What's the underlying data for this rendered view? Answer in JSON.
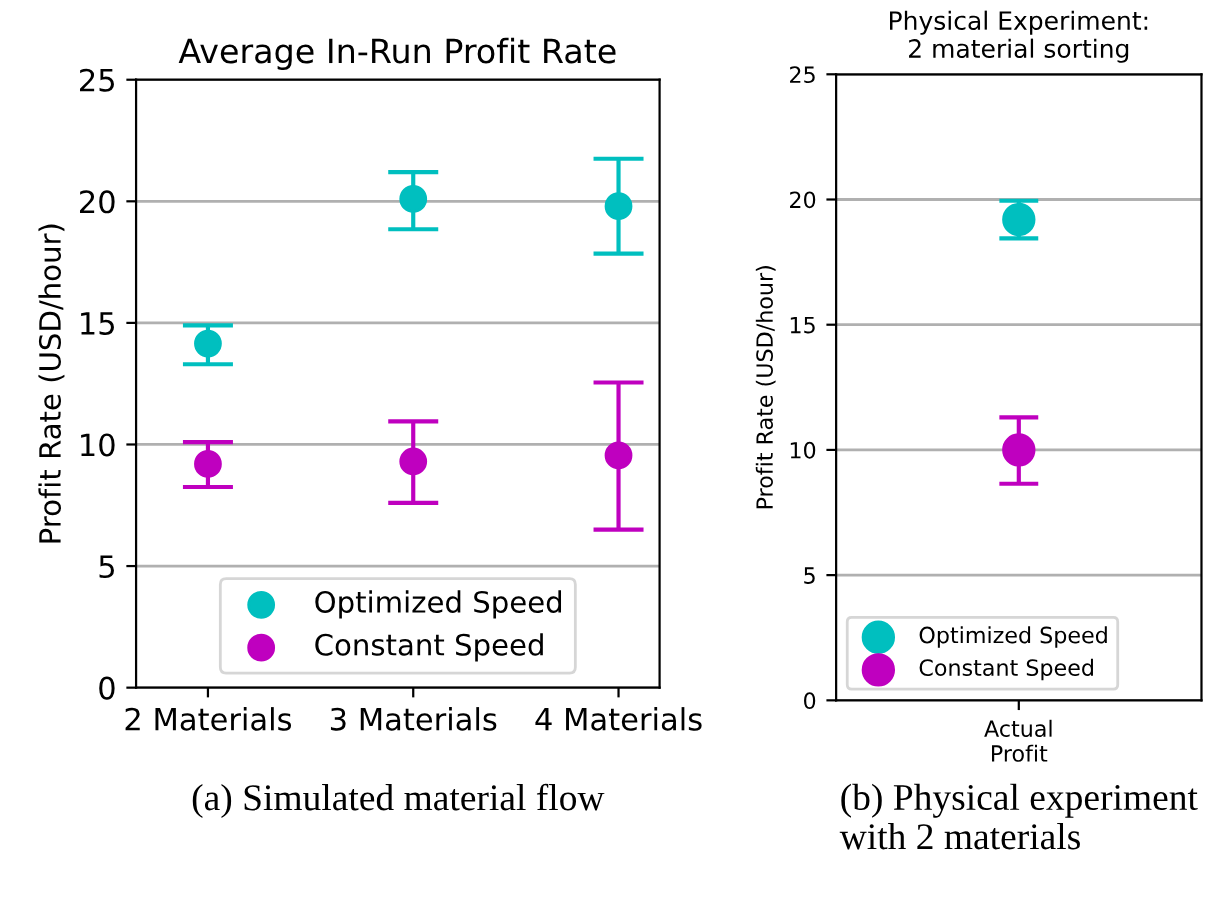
{
  "chart_data": [
    {
      "type": "scatter",
      "title": "Average In-Run Profit Rate",
      "ylabel": "Profit Rate (USD/hour)",
      "categories": [
        "2 Materials",
        "3 Materials",
        "4 Materials"
      ],
      "series": [
        {
          "name": "Optimized Speed",
          "color": "#00bfbf",
          "values": [
            14.15,
            20.1,
            19.8
          ],
          "errors": [
            [
              13.3,
              14.9
            ],
            [
              18.85,
              21.2
            ],
            [
              17.85,
              21.75
            ]
          ]
        },
        {
          "name": "Constant Speed",
          "color": "#bf00bf",
          "values": [
            9.2,
            9.3,
            9.55
          ],
          "errors": [
            [
              8.25,
              10.1
            ],
            [
              7.6,
              10.95
            ],
            [
              6.5,
              12.55
            ]
          ]
        }
      ],
      "ylim": [
        0,
        25
      ],
      "yticks": [
        0,
        5,
        10,
        15,
        20,
        25
      ],
      "grid": "y",
      "legend": "bottom",
      "marker": "circle",
      "annotations": [
        "(a) Simulated material flow"
      ]
    },
    {
      "type": "scatter",
      "title": "Physical Experiment:\n2 material sorting",
      "ylabel": "Profit Rate (USD/hour)",
      "categories": [
        "Actual\nProfit"
      ],
      "series": [
        {
          "name": "Optimized Speed",
          "color": "#00bfbf",
          "values": [
            19.2
          ],
          "errors": [
            [
              18.45,
              19.95
            ]
          ]
        },
        {
          "name": "Constant Speed",
          "color": "#bf00bf",
          "values": [
            10.0
          ],
          "errors": [
            [
              8.65,
              11.3
            ]
          ]
        }
      ],
      "ylim": [
        0,
        25
      ],
      "yticks": [
        0,
        5,
        10,
        15,
        20,
        25
      ],
      "grid": "y",
      "legend": "bottom left",
      "marker": "circle",
      "annotations": [
        "(b) Physical experiment\nwith 2 materials"
      ]
    }
  ]
}
